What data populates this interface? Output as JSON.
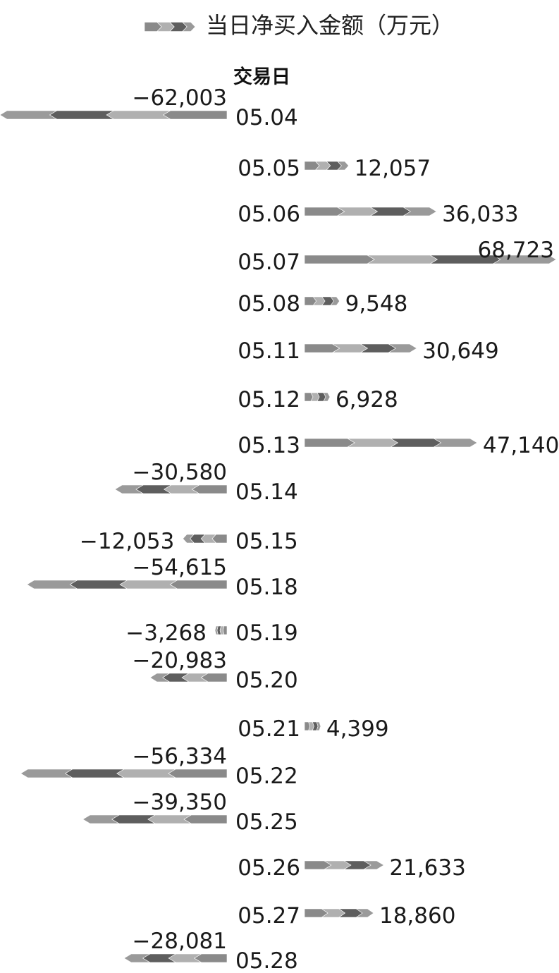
{
  "chart_data": {
    "type": "bar",
    "orientation": "horizontal",
    "ylabel": "交易日",
    "categories": [
      "05.04",
      "05.05",
      "05.06",
      "05.07",
      "05.08",
      "05.11",
      "05.12",
      "05.13",
      "05.14",
      "05.15",
      "05.18",
      "05.19",
      "05.20",
      "05.21",
      "05.22",
      "05.25",
      "05.26",
      "05.27",
      "05.28"
    ],
    "series": [
      {
        "name": "当日净买入金额（万元）",
        "values": [
          -62003,
          12057,
          36033,
          68723,
          9548,
          30649,
          6928,
          47140,
          -30580,
          -12053,
          -54615,
          -3268,
          -20983,
          4399,
          -56334,
          -39350,
          21633,
          18860,
          -28081
        ]
      }
    ],
    "value_labels": [
      "−62,003",
      "12,057",
      "36,033",
      "68,723",
      "9,548",
      "30,649",
      "6,928",
      "47,140",
      "−30,580",
      "−12,053",
      "−54,615",
      "−3,268",
      "−20,983",
      "4,399",
      "−56,334",
      "−39,350",
      "21,633",
      "18,860",
      "−28,081"
    ],
    "legend_position": "top",
    "grid": false,
    "colors": [
      "#8a8a8a",
      "#b0b0b0",
      "#5e5e5e",
      "#9a9a9a"
    ]
  }
}
